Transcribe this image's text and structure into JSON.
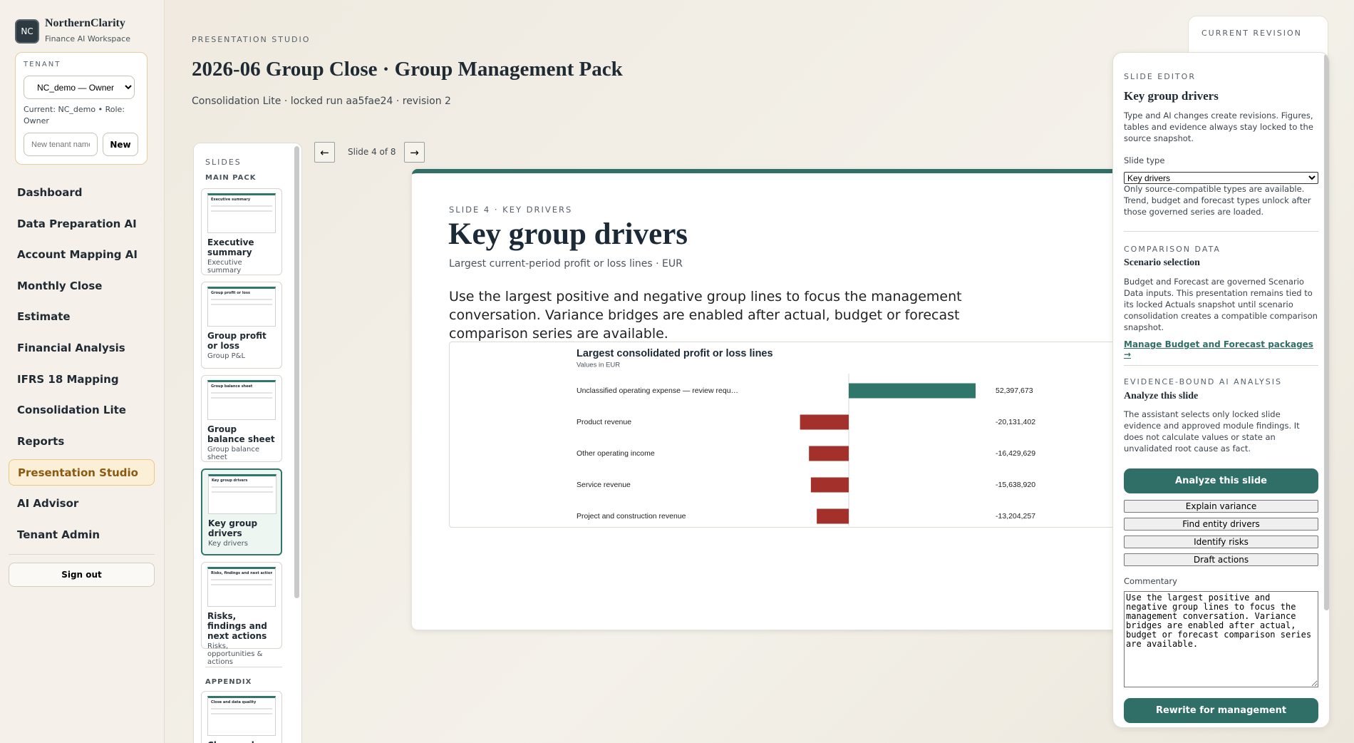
{
  "sidebar": {
    "logo": "NC",
    "brand": "NorthernClarity",
    "subtitle": "Finance AI Workspace",
    "tenant": {
      "label": "TENANT",
      "selected": "NC_demo — Owner",
      "current": "Current: NC_demo • Role: Owner",
      "new_placeholder": "New tenant name",
      "new_button": "New"
    },
    "nav": [
      {
        "label": "Dashboard",
        "active": false
      },
      {
        "label": "Data Preparation AI",
        "active": false
      },
      {
        "label": "Account Mapping AI",
        "active": false
      },
      {
        "label": "Monthly Close",
        "active": false
      },
      {
        "label": "Estimate",
        "active": false
      },
      {
        "label": "Financial Analysis",
        "active": false
      },
      {
        "label": "IFRS 18 Mapping",
        "active": false
      },
      {
        "label": "Consolidation Lite",
        "active": false
      },
      {
        "label": "Reports",
        "active": false
      },
      {
        "label": "Presentation Studio",
        "active": true
      },
      {
        "label": "AI Advisor",
        "active": false
      },
      {
        "label": "Tenant Admin",
        "active": false
      }
    ],
    "sign_out": "Sign out"
  },
  "header": {
    "eyebrow": "PRESENTATION STUDIO",
    "title": "2026-06 Group Close · Group Management Pack",
    "subtitle": "Consolidation Lite · locked run aa5fae24 · revision 2"
  },
  "slides_panel": {
    "label": "SLIDES",
    "main_label": "MAIN PACK",
    "slides": [
      {
        "title": "Executive summary",
        "type": "Executive summary",
        "active": false
      },
      {
        "title": "Group profit or loss",
        "type": "Group P&L",
        "active": false
      },
      {
        "title": "Group balance sheet",
        "type": "Group balance sheet",
        "active": false
      },
      {
        "title": "Key group drivers",
        "type": "Key drivers",
        "active": true
      },
      {
        "title": "Risks, findings and next actions",
        "type": "Risks, opportunities & actions",
        "active": false
      }
    ],
    "appendix_label": "APPENDIX",
    "appendix": [
      {
        "title": "Close and data quality"
      }
    ]
  },
  "navigator": {
    "prev": "←",
    "position": "Slide 4 of 8",
    "next": "→"
  },
  "slide": {
    "eyebrow": "SLIDE 4 · KEY DRIVERS",
    "title": "Key group drivers",
    "subtitle": "Largest current-period profit or loss lines · EUR",
    "body": "Use the largest positive and negative group lines to focus the management conversation. Variance bridges are enabled after actual, budget or forecast comparison series are available.",
    "chart": {
      "type": "bar",
      "orientation": "horizontal",
      "title": "Largest consolidated profit or loss lines",
      "subtitle": "Values in EUR",
      "categories": [
        "Unclassified operating expense — review requ…",
        "Product revenue",
        "Other operating income",
        "Service revenue",
        "Project and construction revenue"
      ],
      "values": [
        52397673,
        -20131402,
        -16429629,
        -15638920,
        -13204257
      ],
      "value_labels": [
        "52,397,673",
        "-20,131,402",
        "-16,429,629",
        "-15,638,920",
        "-13,204,257"
      ],
      "positive_color": "#2f776b",
      "negative_color": "#a3302a"
    }
  },
  "revision": {
    "label": "CURRENT REVISION"
  },
  "editor": {
    "eyebrow": "SLIDE EDITOR",
    "title": "Key group drivers",
    "intro": "Type and AI changes create revisions. Figures, tables and evidence always stay locked to the source snapshot.",
    "slide_type_label": "Slide type",
    "slide_type": "Key drivers",
    "slide_type_help": "Only source-compatible types are available. Trend, budget and forecast types unlock after those governed series are loaded.",
    "comparison_eyebrow": "COMPARISON DATA",
    "comparison_title": "Scenario selection",
    "comparison_text": "Budget and Forecast are governed Scenario Data inputs. This presentation remains tied to its locked Actuals snapshot until scenario consolidation creates a compatible comparison snapshot.",
    "comparison_link": "Manage Budget and Forecast packages →",
    "ai_eyebrow": "EVIDENCE-BOUND AI ANALYSIS",
    "ai_title": "Analyze this slide",
    "ai_text": "The assistant selects only locked slide evidence and approved module findings. It does not calculate values or state an unvalidated root cause as fact.",
    "analyze_button": "Analyze this slide",
    "actions": [
      "Explain variance",
      "Find entity drivers",
      "Identify risks",
      "Draft actions"
    ],
    "commentary_label": "Commentary",
    "commentary": "Use the largest positive and negative group lines to focus the management conversation. Variance bridges are enabled after actual, budget or forecast comparison series are available.",
    "rewrite_button": "Rewrite for management"
  }
}
